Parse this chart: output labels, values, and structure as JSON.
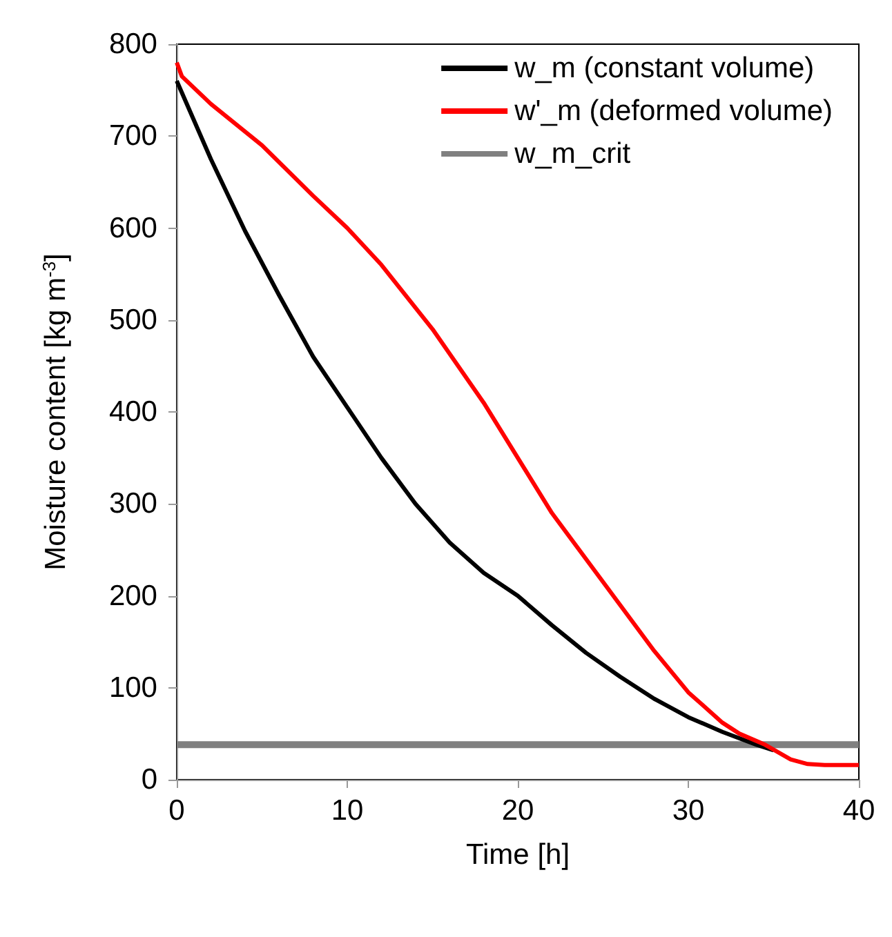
{
  "chart_data": {
    "type": "line",
    "xlabel": "Time [h]",
    "ylabel": "Moisture content [kg m$^{-3}$]",
    "xlim": [
      0,
      40
    ],
    "xticks": [
      0,
      10,
      20,
      30,
      40
    ],
    "ylim": [
      0,
      800
    ],
    "yticks": [
      0,
      100,
      200,
      300,
      400,
      500,
      600,
      700,
      800
    ],
    "grid": false,
    "legend": "top right",
    "marker": "none",
    "line_style": "solid",
    "series": [
      {
        "name": "w_m (constant volume)",
        "color": "#000000",
        "x": [
          0,
          2,
          4,
          6,
          8,
          10,
          12,
          14,
          16,
          18,
          20,
          22,
          24,
          26,
          28,
          30,
          32,
          34,
          35
        ],
        "values": [
          760,
          675,
          597,
          527,
          460,
          405,
          350,
          300,
          258,
          225,
          200,
          168,
          138,
          112,
          88,
          68,
          52,
          38,
          32
        ]
      },
      {
        "name": "w'_m (deformed volume)",
        "color": "#ff0000",
        "x": [
          0,
          0.3,
          2,
          5,
          8,
          10,
          12,
          15,
          18,
          20,
          22,
          25,
          28,
          30,
          32,
          33,
          34.5,
          36,
          37,
          38,
          40
        ],
        "values": [
          780,
          765,
          735,
          690,
          635,
          600,
          560,
          490,
          410,
          350,
          290,
          215,
          140,
          95,
          62,
          50,
          38,
          22,
          17,
          16,
          16
        ]
      },
      {
        "name": "w_m_crit",
        "color": "#808080",
        "x": [
          0,
          40
        ],
        "values": [
          38,
          38
        ]
      }
    ]
  }
}
